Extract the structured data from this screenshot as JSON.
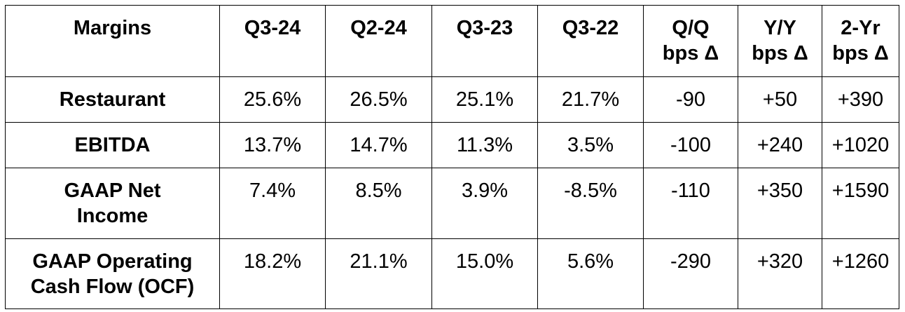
{
  "table": {
    "headers": [
      "Margins",
      "Q3-24",
      "Q2-24",
      "Q3-23",
      "Q3-22",
      "Q/Q\nbps Δ",
      "Y/Y\nbps Δ",
      "2-Yr\nbps Δ"
    ],
    "rows": [
      {
        "label": "Restaurant",
        "cells": [
          "25.6%",
          "26.5%",
          "25.1%",
          "21.7%",
          "-90",
          "+50",
          "+390"
        ]
      },
      {
        "label": "EBITDA",
        "cells": [
          "13.7%",
          "14.7%",
          "11.3%",
          "3.5%",
          "-100",
          "+240",
          "+1020"
        ]
      },
      {
        "label": "GAAP Net\nIncome",
        "cells": [
          "7.4%",
          "8.5%",
          "3.9%",
          "-8.5%",
          "-110",
          "+350",
          "+1590"
        ]
      },
      {
        "label": "GAAP Operating\nCash Flow (OCF)",
        "cells": [
          "18.2%",
          "21.1%",
          "15.0%",
          "5.6%",
          "-290",
          "+320",
          "+1260"
        ]
      }
    ]
  }
}
